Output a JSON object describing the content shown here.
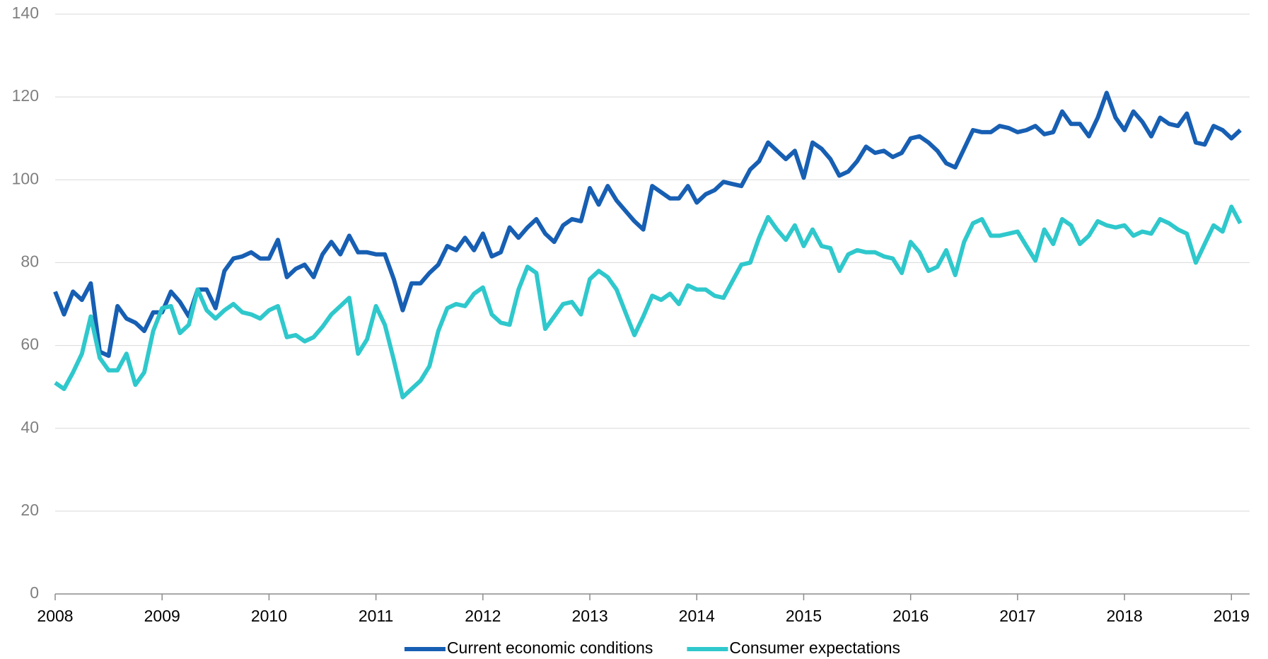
{
  "chart_data": {
    "type": "line",
    "x": [
      2008,
      2008.083,
      2008.167,
      2008.25,
      2008.333,
      2008.417,
      2008.5,
      2008.583,
      2008.667,
      2008.75,
      2008.833,
      2008.917,
      2009,
      2009.083,
      2009.167,
      2009.25,
      2009.333,
      2009.417,
      2009.5,
      2009.583,
      2009.667,
      2009.75,
      2009.833,
      2009.917,
      2010,
      2010.083,
      2010.167,
      2010.25,
      2010.333,
      2010.417,
      2010.5,
      2010.583,
      2010.667,
      2010.75,
      2010.833,
      2010.917,
      2011,
      2011.083,
      2011.167,
      2011.25,
      2011.333,
      2011.417,
      2011.5,
      2011.583,
      2011.667,
      2011.75,
      2011.833,
      2011.917,
      2012,
      2012.083,
      2012.167,
      2012.25,
      2012.333,
      2012.417,
      2012.5,
      2012.583,
      2012.667,
      2012.75,
      2012.833,
      2012.917,
      2013,
      2013.083,
      2013.167,
      2013.25,
      2013.333,
      2013.417,
      2013.5,
      2013.583,
      2013.667,
      2013.75,
      2013.833,
      2013.917,
      2014,
      2014.083,
      2014.167,
      2014.25,
      2014.333,
      2014.417,
      2014.5,
      2014.583,
      2014.667,
      2014.75,
      2014.833,
      2014.917,
      2015,
      2015.083,
      2015.167,
      2015.25,
      2015.333,
      2015.417,
      2015.5,
      2015.583,
      2015.667,
      2015.75,
      2015.833,
      2015.917,
      2016,
      2016.083,
      2016.167,
      2016.25,
      2016.333,
      2016.417,
      2016.5,
      2016.583,
      2016.667,
      2016.75,
      2016.833,
      2016.917,
      2017,
      2017.083,
      2017.167,
      2017.25,
      2017.333,
      2017.417,
      2017.5,
      2017.583,
      2017.667,
      2017.75,
      2017.833,
      2017.917,
      2018,
      2018.083,
      2018.167,
      2018.25,
      2018.333,
      2018.417,
      2018.5,
      2018.583,
      2018.667,
      2018.75,
      2018.833,
      2018.917,
      2019,
      2019.083
    ],
    "series": [
      {
        "name": "Current economic conditions",
        "color": "#175fb3",
        "values": [
          73,
          67.5,
          73,
          71,
          75,
          58.5,
          57.5,
          69.5,
          66.5,
          65.5,
          63.5,
          68,
          68,
          73,
          70.5,
          67,
          73.5,
          73.5,
          69,
          78,
          81,
          81.5,
          82.5,
          81,
          81,
          85.5,
          76.5,
          78.5,
          79.5,
          76.5,
          82,
          85,
          82,
          86.5,
          82.5,
          82.5,
          82,
          82,
          76,
          68.5,
          75,
          75,
          77.5,
          79.5,
          84,
          83,
          86,
          83,
          87,
          81.5,
          82.5,
          88.5,
          86,
          88.5,
          90.5,
          87,
          85,
          89,
          90.5,
          90,
          98,
          94,
          98.5,
          95,
          92.5,
          90,
          88,
          98.5,
          97,
          95.5,
          95.5,
          98.5,
          94.5,
          96.5,
          97.5,
          99.5,
          99,
          98.5,
          102.5,
          104.5,
          109,
          107,
          105,
          107,
          100.5,
          109,
          107.5,
          105,
          101,
          102,
          104.5,
          108,
          106.5,
          107,
          105.5,
          106.5,
          110,
          110.5,
          109,
          107,
          104,
          103,
          107.5,
          112,
          111.5,
          111.5,
          113,
          112.5,
          111.5,
          112,
          113,
          111,
          111.5,
          116.5,
          113.5,
          113.5,
          110.5,
          115,
          121,
          115,
          112,
          116.5,
          114,
          110.5,
          115,
          113.5,
          113,
          116,
          109,
          108.5,
          113,
          112,
          110,
          112
        ]
      },
      {
        "name": "Consumer expectations",
        "color": "#2fc8cc",
        "values": [
          51,
          49.5,
          53.5,
          58,
          67,
          57,
          54,
          54,
          58,
          50.5,
          53.5,
          63.5,
          69,
          69.5,
          63,
          65,
          73.5,
          68.5,
          66.5,
          68.5,
          70,
          68,
          67.5,
          66.5,
          68.5,
          69.5,
          62,
          62.5,
          61,
          62,
          64.5,
          67.5,
          69.5,
          71.5,
          58,
          61.5,
          69.5,
          65,
          56.5,
          47.5,
          49.5,
          51.5,
          55,
          63.5,
          69,
          70,
          69.5,
          72.5,
          74,
          67.5,
          65.5,
          65,
          73.5,
          79,
          77.5,
          64,
          67,
          70,
          70.5,
          67.5,
          76,
          78,
          76.5,
          73.5,
          68,
          62.5,
          67,
          72,
          71,
          72.5,
          70,
          74.5,
          73.5,
          73.5,
          72,
          71.5,
          75.5,
          79.5,
          80,
          86,
          91,
          88,
          85.5,
          89,
          84,
          88,
          84,
          83.5,
          78,
          82,
          83,
          82.5,
          82.5,
          81.5,
          81,
          77.5,
          85,
          82.5,
          78,
          79,
          83,
          77,
          85,
          89.5,
          90.5,
          86.5,
          86.5,
          87,
          87.5,
          84,
          80.5,
          88,
          84.5,
          90.5,
          89,
          84.5,
          86.5,
          90,
          89,
          88.5,
          89,
          86.5,
          87.5,
          87,
          90.5,
          89.5,
          88,
          87,
          80,
          84.5,
          89,
          87.5,
          93.5,
          89.5
        ]
      }
    ],
    "xlim": [
      2008,
      2019.17
    ],
    "xticks": [
      2008,
      2009,
      2010,
      2011,
      2012,
      2013,
      2014,
      2015,
      2016,
      2017,
      2018,
      2019
    ],
    "ylim": [
      0,
      140
    ],
    "yticks": [
      0,
      20,
      40,
      60,
      80,
      100,
      120,
      140
    ],
    "grid": true,
    "legend": "bottom"
  }
}
